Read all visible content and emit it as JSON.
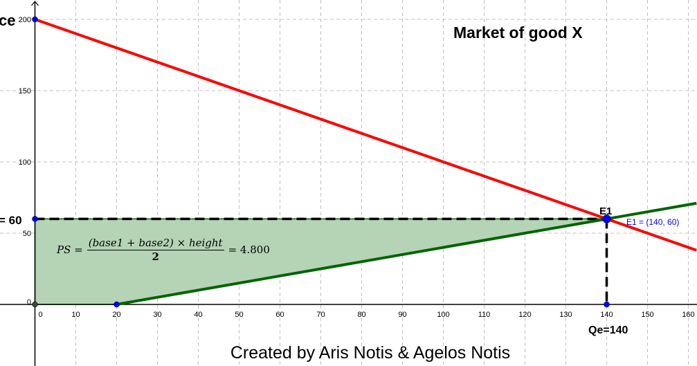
{
  "chart_data": {
    "type": "line",
    "title": "Market of good X",
    "xlim": [
      -1,
      162
    ],
    "ylim": [
      -40,
      205
    ],
    "x_ticks": [
      0,
      10,
      20,
      30,
      40,
      50,
      60,
      70,
      80,
      90,
      100,
      110,
      120,
      130,
      140,
      150,
      160
    ],
    "y_ticks": [
      0,
      50,
      100,
      150,
      200
    ],
    "grid": true,
    "ylabel_partial": "ce",
    "price_label_partial": "= 60",
    "series": [
      {
        "kind": "demand",
        "color": "#ff0000",
        "points": [
          [
            0,
            200
          ],
          [
            162,
            38
          ]
        ]
      },
      {
        "kind": "supply",
        "color": "#006400",
        "points": [
          [
            20,
            0
          ],
          [
            162,
            71
          ]
        ]
      }
    ],
    "equilibrium": {
      "name": "E1",
      "x": 140,
      "y": 60,
      "label": "E1 = (140, 60)",
      "color": "#0000ff"
    },
    "quantity_label": "Qe=140",
    "points": [
      [
        0,
        200
      ],
      [
        0,
        60
      ],
      [
        20,
        0
      ],
      [
        140,
        0
      ],
      [
        0,
        0
      ]
    ],
    "shaded_region": {
      "vertices": [
        [
          0,
          0
        ],
        [
          20,
          0
        ],
        [
          140,
          60
        ],
        [
          0,
          60
        ]
      ],
      "color": "#b5d3b5"
    },
    "formula": {
      "lhs": "PS =",
      "numerator": "(base1 + base2) × height",
      "denominator": "2",
      "result": "= 4.800"
    }
  },
  "footer": "Created by Aris Notis & Agelos Notis"
}
